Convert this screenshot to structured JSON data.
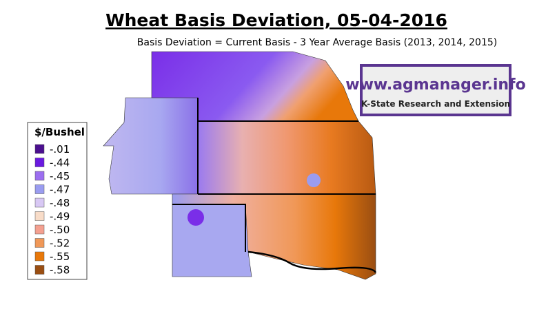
{
  "header": {
    "title": "Wheat Basis Deviation, 05-04-2016",
    "subtitle": "Basis Deviation = Current Basis - 3 Year Average Basis (2013, 2014, 2015)"
  },
  "logo": {
    "url": "www.agmanager.info",
    "org": "K-State Research and Extension"
  },
  "legend": {
    "title": "$/Bushel",
    "entries": [
      {
        "label": "-.01",
        "color": "#4b0f8f"
      },
      {
        "label": "-.44",
        "color": "#6a19e0"
      },
      {
        "label": "-.45",
        "color": "#9c6ef0"
      },
      {
        "label": "-.47",
        "color": "#9a9cf0"
      },
      {
        "label": "-.48",
        "color": "#d8c8f4"
      },
      {
        "label": "-.49",
        "color": "#f8dcc8"
      },
      {
        "label": "-.50",
        "color": "#f4a090"
      },
      {
        "label": "-.52",
        "color": "#f09858"
      },
      {
        "label": "-.55",
        "color": "#e8780a"
      },
      {
        "label": "-.58",
        "color": "#9a4e12"
      }
    ]
  }
}
